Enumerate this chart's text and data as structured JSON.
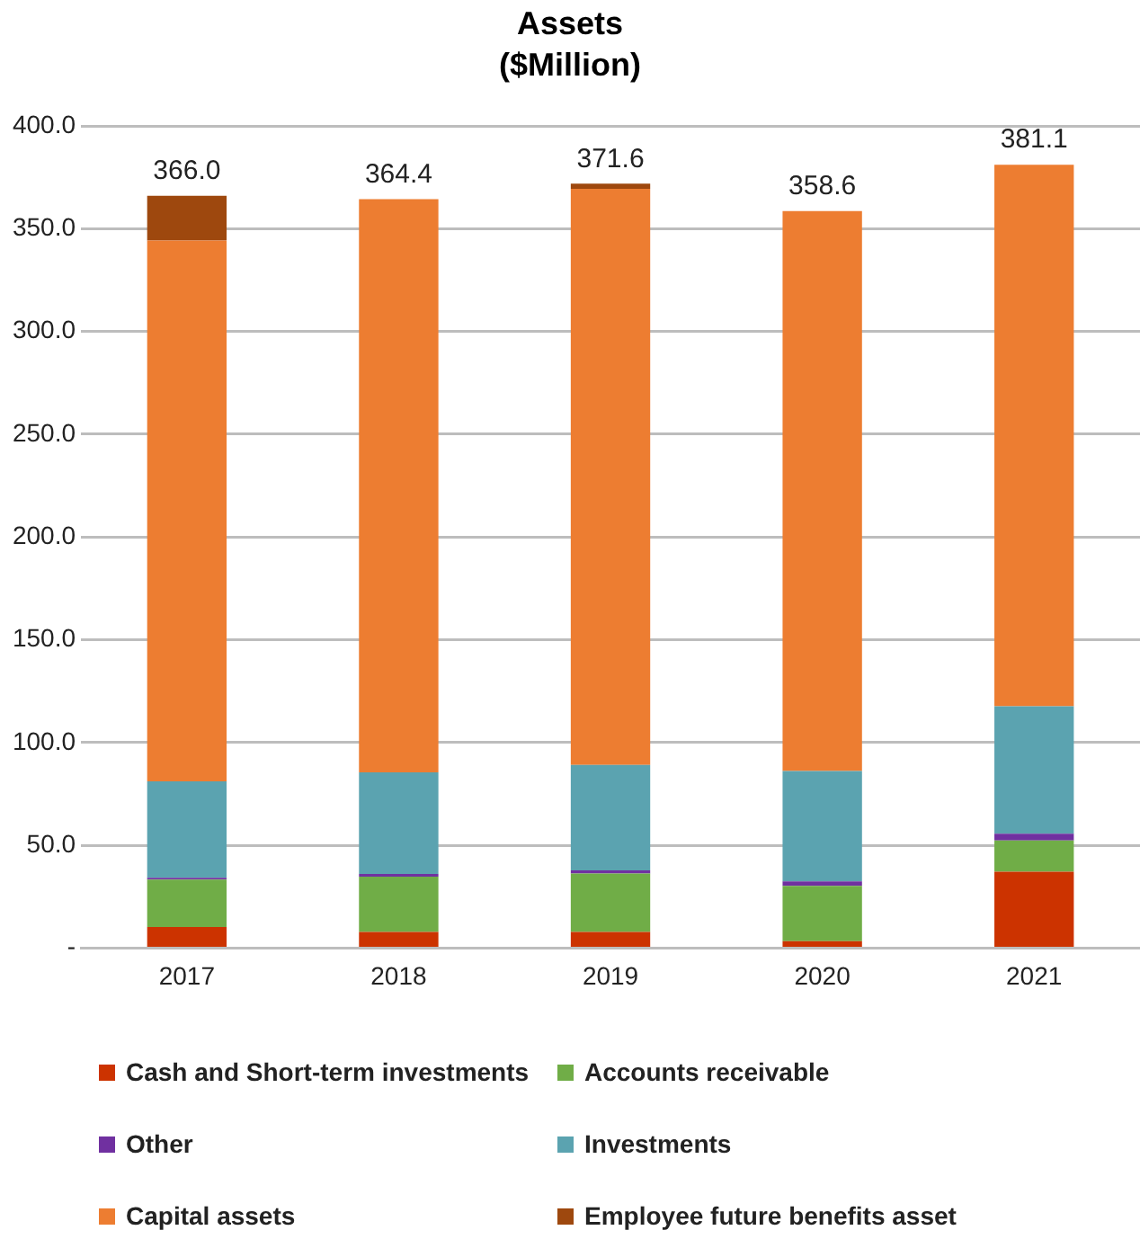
{
  "chart_data": {
    "type": "bar",
    "title": "Assets",
    "subtitle": "($Million)",
    "categories": [
      "2017",
      "2018",
      "2019",
      "2020",
      "2021"
    ],
    "stacked": true,
    "series": [
      {
        "name": "Cash and Short-term investments",
        "color": "#cc3300",
        "values": [
          10.2,
          7.8,
          7.8,
          3.3,
          37.1
        ]
      },
      {
        "name": "Accounts receivable",
        "color": "#70ad47",
        "values": [
          23.1,
          26.9,
          28.5,
          27.0,
          15.2
        ]
      },
      {
        "name": "Other",
        "color": "#7030a0",
        "values": [
          0.9,
          1.3,
          1.5,
          2.1,
          3.3
        ]
      },
      {
        "name": "Investments",
        "color": "#5ba3b0",
        "values": [
          46.9,
          49.5,
          51.3,
          53.7,
          62.0
        ]
      },
      {
        "name": "Capital assets",
        "color": "#ed7d31",
        "values": [
          263.1,
          278.9,
          280.3,
          272.5,
          263.5
        ]
      },
      {
        "name": "Employee future benefits asset",
        "color": "#9e480e",
        "values": [
          21.8,
          null,
          2.5,
          null,
          null
        ]
      }
    ],
    "totals": [
      "366.0",
      "364.4",
      "371.6",
      "358.6",
      "381.1"
    ],
    "ylim": [
      0,
      400
    ],
    "yticks": [
      {
        "value": 0,
        "label": "-"
      },
      {
        "value": 50,
        "label": "50.0"
      },
      {
        "value": 100,
        "label": "100.0"
      },
      {
        "value": 150,
        "label": "150.0"
      },
      {
        "value": 200,
        "label": "200.0"
      },
      {
        "value": 250,
        "label": "250.0"
      },
      {
        "value": 300,
        "label": "300.0"
      },
      {
        "value": 350,
        "label": "350.0"
      },
      {
        "value": 400,
        "label": "400.0"
      }
    ],
    "grid": "y",
    "legend": "bottom"
  }
}
